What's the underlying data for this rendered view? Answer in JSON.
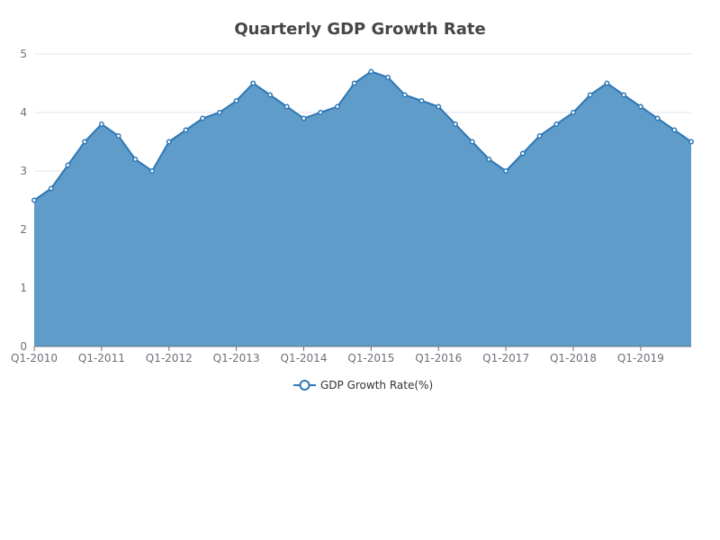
{
  "chart_data": {
    "type": "area",
    "title": "Quarterly GDP Growth Rate",
    "xlabel": "",
    "ylabel": "",
    "ylim": [
      0,
      5
    ],
    "yticks": [
      0,
      1,
      2,
      3,
      4,
      5
    ],
    "grid": true,
    "legend_position": "bottom",
    "x_tick_labels": [
      "Q1-2010",
      "Q1-2011",
      "Q1-2012",
      "Q1-2013",
      "Q1-2014",
      "Q1-2015",
      "Q1-2016",
      "Q1-2017",
      "Q1-2018",
      "Q1-2019"
    ],
    "x": [
      "Q1-2010",
      "Q2-2010",
      "Q3-2010",
      "Q4-2010",
      "Q1-2011",
      "Q2-2011",
      "Q3-2011",
      "Q4-2011",
      "Q1-2012",
      "Q2-2012",
      "Q3-2012",
      "Q4-2012",
      "Q1-2013",
      "Q2-2013",
      "Q3-2013",
      "Q4-2013",
      "Q1-2014",
      "Q2-2014",
      "Q3-2014",
      "Q4-2014",
      "Q1-2015",
      "Q2-2015",
      "Q3-2015",
      "Q4-2015",
      "Q1-2016",
      "Q2-2016",
      "Q3-2016",
      "Q4-2016",
      "Q1-2017",
      "Q2-2017",
      "Q3-2017",
      "Q4-2017",
      "Q1-2018",
      "Q2-2018",
      "Q3-2018",
      "Q4-2018",
      "Q1-2019",
      "Q2-2019",
      "Q3-2019",
      "Q4-2019"
    ],
    "series": [
      {
        "name": "GDP Growth Rate(%)",
        "color": "#2f78b5",
        "fill": "#5f9cc9",
        "values": [
          2.5,
          2.7,
          3.1,
          3.5,
          3.8,
          3.6,
          3.2,
          3.0,
          3.5,
          3.7,
          3.9,
          4.0,
          4.2,
          4.5,
          4.3,
          4.1,
          3.9,
          4.0,
          4.1,
          4.5,
          4.7,
          4.6,
          4.3,
          4.2,
          4.1,
          3.8,
          3.5,
          3.2,
          3.0,
          3.3,
          3.6,
          3.8,
          4.0,
          4.3,
          4.5,
          4.3,
          4.1,
          3.9,
          3.7,
          3.5
        ]
      }
    ]
  }
}
